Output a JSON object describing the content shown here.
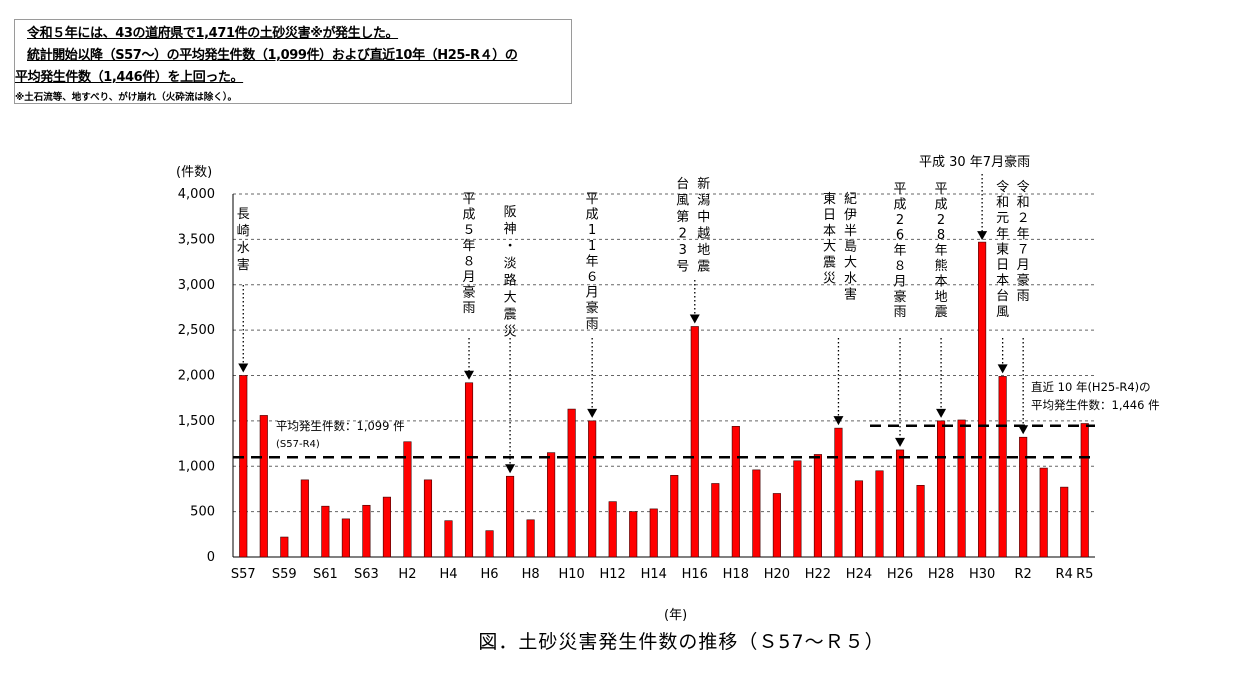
{
  "summary": {
    "line1": "令和５年には、43の道府県で1,471件の土砂災害※が発生した。",
    "line2": "統計開始以降（S57～）の平均発生件数（1,099件）および直近10年（H25-R４）の",
    "line3": "平均発生件数（1,446件）を上回った。",
    "note": "※土石流等、地すべり、がけ崩れ（火砕流は除く）。"
  },
  "figure_caption": "図．土砂災害発生件数の推移（Ｓ57～Ｒ５）",
  "chart_data": {
    "type": "bar",
    "ylabel": "(件数)",
    "xlabel": "(年)",
    "ylim": [
      0,
      4000
    ],
    "y_ticks": [
      0,
      500,
      1000,
      1500,
      2000,
      2500,
      3000,
      3500,
      4000
    ],
    "y_tick_labels": [
      "0",
      "500",
      "1,000",
      "1,500",
      "2,000",
      "2,500",
      "3,000",
      "3,500",
      "4,000"
    ],
    "grid": "horizontal dashed",
    "bar_color": "#ff0000",
    "categories": [
      "S57",
      "S58",
      "S59",
      "S60",
      "S61",
      "S62",
      "S63",
      "H1",
      "H2",
      "H3",
      "H4",
      "H5",
      "H6",
      "H7",
      "H8",
      "H9",
      "H10",
      "H11",
      "H12",
      "H13",
      "H14",
      "H15",
      "H16",
      "H17",
      "H18",
      "H19",
      "H20",
      "H21",
      "H22",
      "H23",
      "H24",
      "H25",
      "H26",
      "H27",
      "H28",
      "H29",
      "H30",
      "R1",
      "R2",
      "R3",
      "R4",
      "R5"
    ],
    "x_tick_labels": [
      "S57",
      "",
      "S59",
      "",
      "S61",
      "",
      "S63",
      "",
      "H2",
      "",
      "H4",
      "",
      "H6",
      "",
      "H8",
      "",
      "H10",
      "",
      "H12",
      "",
      "H14",
      "",
      "H16",
      "",
      "H18",
      "",
      "H20",
      "",
      "H22",
      "",
      "H24",
      "",
      "H26",
      "",
      "H28",
      "",
      "H30",
      "",
      "R2",
      "",
      "R4",
      "R5"
    ],
    "values": [
      2000,
      1560,
      220,
      850,
      560,
      420,
      570,
      660,
      1270,
      850,
      400,
      1920,
      290,
      890,
      410,
      1150,
      1630,
      1500,
      610,
      500,
      530,
      900,
      2540,
      810,
      1440,
      960,
      700,
      1060,
      1130,
      1420,
      840,
      950,
      1180,
      790,
      1500,
      1510,
      3470,
      1990,
      1320,
      980,
      770,
      1471
    ],
    "reference_lines": [
      {
        "label": "平均発生件数：1,099 件",
        "sublabel": "(S57-R4)",
        "value": 1099
      },
      {
        "label": "直近 10 年(H25-R4)の",
        "sublabel": "平均発生件数：1,446 件",
        "value": 1446
      }
    ],
    "annotations": [
      {
        "category": "S57",
        "text": "長崎水害",
        "vertical": true
      },
      {
        "category": "H5",
        "text": "平成５年８月豪雨",
        "vertical": true
      },
      {
        "category": "H7",
        "text": "阪神・淡路大震災",
        "vertical": true
      },
      {
        "category": "H11",
        "text": "平成11年６月豪雨",
        "vertical": true
      },
      {
        "category": "H16",
        "text": "新潟中越地震",
        "vertical": true
      },
      {
        "category": "H16",
        "text": "台風第23号",
        "vertical": true
      },
      {
        "category": "H23",
        "text": "紀伊半島大水害",
        "vertical": true
      },
      {
        "category": "H23",
        "text": "東日本大震災",
        "vertical": true
      },
      {
        "category": "H26",
        "text": "平成26年８月豪雨",
        "vertical": true
      },
      {
        "category": "H28",
        "text": "平成28年熊本地震",
        "vertical": true
      },
      {
        "category": "H30",
        "text": "平成 30 年7月豪雨",
        "vertical": false
      },
      {
        "category": "R1",
        "text": "令和元年東日本台風",
        "vertical": true
      },
      {
        "category": "R2",
        "text": "令和２年７月豪雨",
        "vertical": true
      }
    ]
  }
}
